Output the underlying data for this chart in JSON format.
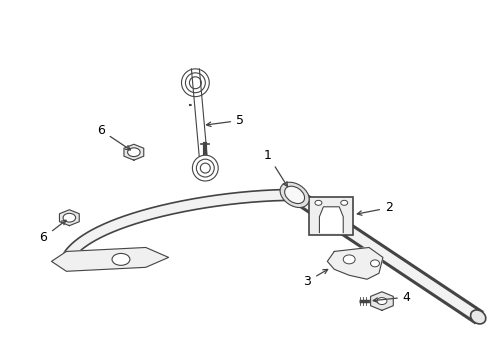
{
  "background_color": "#ffffff",
  "line_color": "#444444",
  "label_color": "#000000",
  "fig_width": 4.89,
  "fig_height": 3.6,
  "dpi": 100,
  "arrow_color": "#444444"
}
